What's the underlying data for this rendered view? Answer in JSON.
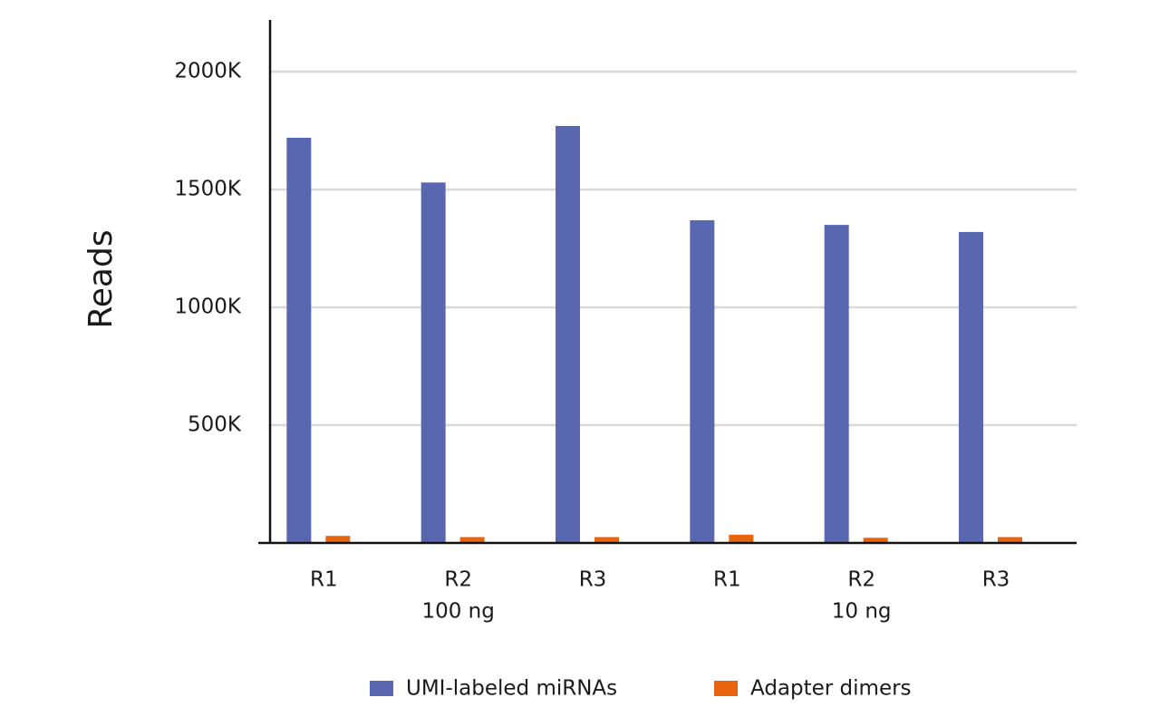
{
  "chart_data": {
    "type": "bar",
    "y_label": "Reads",
    "categories": [
      "R1",
      "R2",
      "R3",
      "R1",
      "R2",
      "R3"
    ],
    "group_labels": [
      "100 ng",
      "10 ng"
    ],
    "series": [
      {
        "name": "UMI-labeled miRNAs",
        "color": "#5967b0",
        "values": [
          1720000,
          1530000,
          1770000,
          1370000,
          1350000,
          1320000
        ]
      },
      {
        "name": "Adapter dimers",
        "color": "#e8650e",
        "values": [
          30000,
          25000,
          25000,
          35000,
          22000,
          25000
        ]
      }
    ],
    "ylim": [
      0,
      2220000
    ],
    "yticks": [
      {
        "value": 500000,
        "label": "500K"
      },
      {
        "value": 1000000,
        "label": "1000K"
      },
      {
        "value": 1500000,
        "label": "1500K"
      },
      {
        "value": 2000000,
        "label": "2000K"
      }
    ],
    "grid": true,
    "legend": "bottom"
  }
}
